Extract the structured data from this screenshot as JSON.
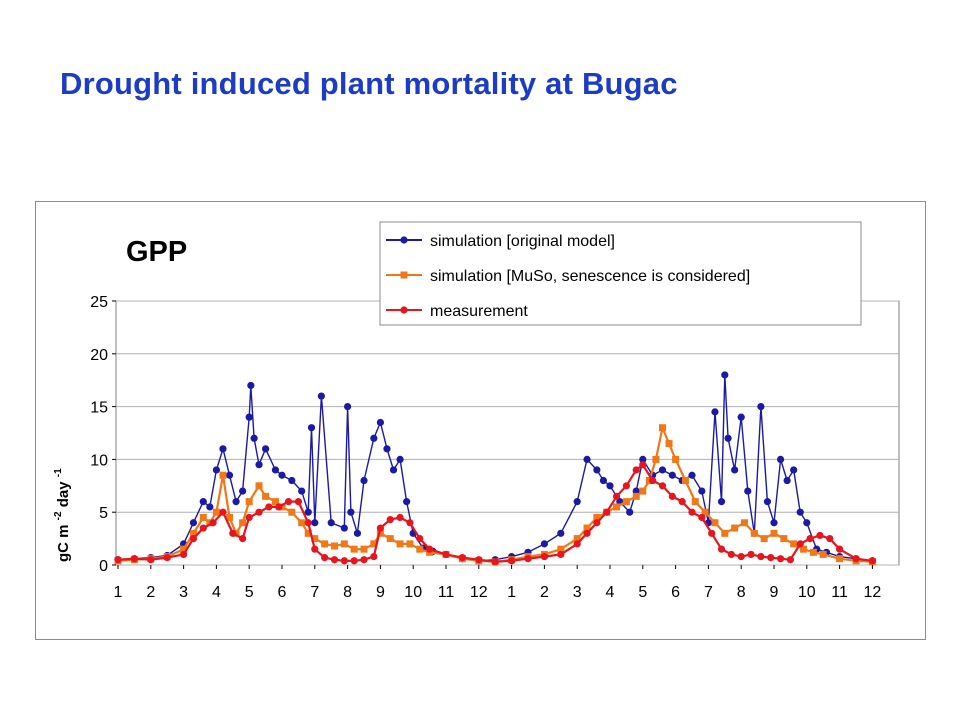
{
  "slide": {
    "title": "Drought induced plant mortality at Bugac"
  },
  "chart_data": {
    "type": "line",
    "panel_label": "GPP",
    "xlabel": "",
    "ylabel": {
      "base1": "gC m",
      "sup1": "-2",
      "base2": " day",
      "sup2": "-1"
    },
    "ylim": [
      0,
      25
    ],
    "y_ticks": [
      "0",
      "5",
      "10",
      "15",
      "20",
      "25"
    ],
    "x_ticks": [
      "1",
      "2",
      "3",
      "4",
      "5",
      "6",
      "7",
      "8",
      "9",
      "10",
      "11",
      "12",
      "1",
      "2",
      "3",
      "4",
      "5",
      "6",
      "7",
      "8",
      "9",
      "10",
      "11",
      "12"
    ],
    "grid": "horizontal",
    "legend_position": "top-right",
    "x_unit": "month index (1-24, two years)",
    "series": [
      {
        "name": "simulation [original model]",
        "color": "#1a1aa6",
        "marker": "circle-dark",
        "x": [
          1,
          1.5,
          2,
          2.5,
          3,
          3.3,
          3.6,
          3.8,
          4,
          4.2,
          4.4,
          4.6,
          4.8,
          5,
          5.05,
          5.15,
          5.3,
          5.5,
          5.8,
          6,
          6.3,
          6.6,
          6.8,
          6.9,
          7,
          7.2,
          7.5,
          7.9,
          8,
          8.1,
          8.3,
          8.5,
          8.8,
          9,
          9.2,
          9.4,
          9.6,
          9.8,
          10,
          10.3,
          10.6,
          11,
          11.5,
          12,
          12.5,
          13,
          13.5,
          14,
          14.5,
          15,
          15.3,
          15.6,
          15.8,
          16,
          16.3,
          16.6,
          16.8,
          17,
          17.3,
          17.6,
          17.9,
          18.2,
          18.5,
          18.8,
          19,
          19.2,
          19.4,
          19.5,
          19.6,
          19.8,
          20,
          20.2,
          20.4,
          20.6,
          20.8,
          21,
          21.2,
          21.4,
          21.6,
          21.8,
          22,
          22.3,
          22.6,
          23,
          23.5,
          24
        ],
        "values": [
          0.5,
          0.6,
          0.7,
          0.9,
          2,
          4,
          6,
          5.5,
          9,
          11,
          8.5,
          6,
          7,
          14,
          17,
          12,
          9.5,
          11,
          9,
          8.5,
          8,
          7,
          5,
          13,
          4,
          16,
          4,
          3.5,
          15,
          5,
          3,
          8,
          12,
          13.5,
          11,
          9,
          10,
          6,
          3,
          1.6,
          1.3,
          1,
          0.6,
          0.4,
          0.5,
          0.8,
          1.2,
          2,
          3,
          6,
          10,
          9,
          8,
          7.5,
          6,
          5,
          7,
          10,
          8.5,
          9,
          8.5,
          8,
          8.5,
          7,
          4,
          14.5,
          6,
          18,
          12,
          9,
          14,
          7,
          3,
          15,
          6,
          4,
          10,
          8,
          9,
          5,
          4,
          1.5,
          1.2,
          0.8,
          0.6,
          0.4
        ]
      },
      {
        "name": "simulation [MuSo, senescence is considered]",
        "color": "#f07818",
        "marker": "square-orange",
        "x": [
          1,
          1.5,
          2,
          2.5,
          3,
          3.3,
          3.6,
          3.8,
          4,
          4.2,
          4.4,
          4.6,
          4.8,
          5,
          5.3,
          5.5,
          5.8,
          6,
          6.3,
          6.6,
          6.8,
          7,
          7.3,
          7.6,
          7.9,
          8.2,
          8.5,
          8.8,
          9,
          9.3,
          9.6,
          9.9,
          10.2,
          10.5,
          11,
          11.5,
          12,
          12.5,
          13,
          13.5,
          14,
          14.5,
          15,
          15.3,
          15.6,
          15.9,
          16.2,
          16.5,
          16.8,
          17,
          17.2,
          17.4,
          17.6,
          17.8,
          18,
          18.3,
          18.6,
          18.9,
          19.2,
          19.5,
          19.8,
          20.1,
          20.4,
          20.7,
          21,
          21.3,
          21.6,
          21.9,
          22.2,
          22.5,
          23,
          23.5,
          24
        ],
        "values": [
          0.4,
          0.5,
          0.6,
          0.8,
          1.5,
          3,
          4.5,
          4,
          5,
          8.5,
          4.5,
          3,
          4,
          6,
          7.5,
          6.5,
          6,
          5.5,
          5,
          4,
          3,
          2.5,
          2,
          1.8,
          2,
          1.5,
          1.5,
          2,
          3,
          2.5,
          2,
          2,
          1.5,
          1.2,
          1,
          0.6,
          0.4,
          0.3,
          0.5,
          0.8,
          1,
          1.5,
          2.5,
          3.5,
          4.5,
          5,
          5.5,
          6,
          6.5,
          7,
          8,
          10,
          13,
          11.5,
          10,
          8,
          6,
          5,
          4,
          3,
          3.5,
          4,
          3,
          2.5,
          3,
          2.5,
          2,
          1.5,
          1.2,
          1,
          0.6,
          0.4,
          0.3
        ]
      },
      {
        "name": "measurement",
        "color": "#e8141e",
        "marker": "circle-red",
        "x": [
          1,
          1.5,
          2,
          2.5,
          3,
          3.3,
          3.6,
          3.9,
          4.2,
          4.5,
          4.8,
          5,
          5.3,
          5.6,
          5.9,
          6.2,
          6.5,
          6.8,
          7,
          7.3,
          7.6,
          7.9,
          8.2,
          8.5,
          8.8,
          9,
          9.3,
          9.6,
          9.9,
          10.2,
          10.5,
          11,
          11.5,
          12,
          12.5,
          13,
          13.5,
          14,
          14.5,
          15,
          15.3,
          15.6,
          15.9,
          16.2,
          16.5,
          16.8,
          17,
          17.3,
          17.6,
          17.9,
          18.2,
          18.5,
          18.8,
          19.1,
          19.4,
          19.7,
          20,
          20.3,
          20.6,
          20.9,
          21.2,
          21.5,
          21.8,
          22.1,
          22.4,
          22.7,
          23,
          23.5,
          24
        ],
        "values": [
          0.5,
          0.6,
          0.5,
          0.7,
          1,
          2.5,
          3.5,
          4,
          5,
          3,
          2.5,
          4.5,
          5,
          5.5,
          5.5,
          6,
          6,
          4,
          1.5,
          0.7,
          0.5,
          0.4,
          0.4,
          0.5,
          0.8,
          3.5,
          4.3,
          4.5,
          4,
          2.5,
          1.5,
          1,
          0.7,
          0.5,
          0.3,
          0.4,
          0.6,
          0.8,
          1,
          2,
          3,
          4,
          5,
          6.5,
          7.5,
          9,
          9.5,
          8,
          7.5,
          6.5,
          6,
          5,
          4.5,
          3,
          1.5,
          1,
          0.8,
          1,
          0.8,
          0.7,
          0.6,
          0.5,
          2,
          2.5,
          2.8,
          2.5,
          1.5,
          0.6,
          0.4
        ]
      }
    ]
  }
}
